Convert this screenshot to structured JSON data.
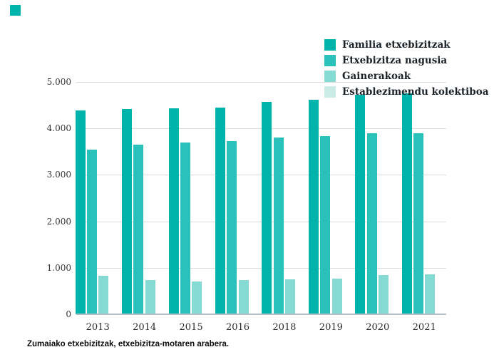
{
  "caption": "Zumaiako etxebizitzak, etxebizitza-motaren arabera.",
  "decor": {
    "corner_square_color": "#00b3ab"
  },
  "colors": {
    "gridline": "#dcdcdc",
    "baseline": "#b0bfc5",
    "axis_text": "#333333",
    "legend_text": "#1b2228",
    "caption_text": "#0a0a0a"
  },
  "chart_data": {
    "type": "bar",
    "title": "Zumaiako etxebizitzak, etxebizitza-motaren arabera.",
    "categories": [
      "2013",
      "2014",
      "2015",
      "2016",
      "2018",
      "2019",
      "2020",
      "2021"
    ],
    "series": [
      {
        "name": "Familia etxebizitzak",
        "color": "#00b3ab",
        "values": [
          4390,
          4410,
          4430,
          4450,
          4570,
          4610,
          4730,
          4750
        ]
      },
      {
        "name": "Etxebizitza nagusia",
        "color": "#29c1b9",
        "values": [
          3540,
          3650,
          3700,
          3720,
          3810,
          3830,
          3890,
          3890
        ]
      },
      {
        "name": "Gainerakoak",
        "color": "#85dad4",
        "values": [
          830,
          730,
          705,
          730,
          755,
          770,
          845,
          860
        ]
      },
      {
        "name": "Establezimendu kolektiboa",
        "color": "#c9ece9",
        "values": [
          0,
          0,
          0,
          0,
          0,
          0,
          0,
          0
        ]
      }
    ],
    "xlabel": "",
    "ylabel": "",
    "ylim": [
      0,
      5000
    ],
    "y_tick_step": 1000,
    "y_tick_labels": [
      "5.000",
      "4.000",
      "3.000",
      "2.000",
      "1.000",
      "0"
    ],
    "grid": "horizontal",
    "legend_position": "top-right"
  }
}
